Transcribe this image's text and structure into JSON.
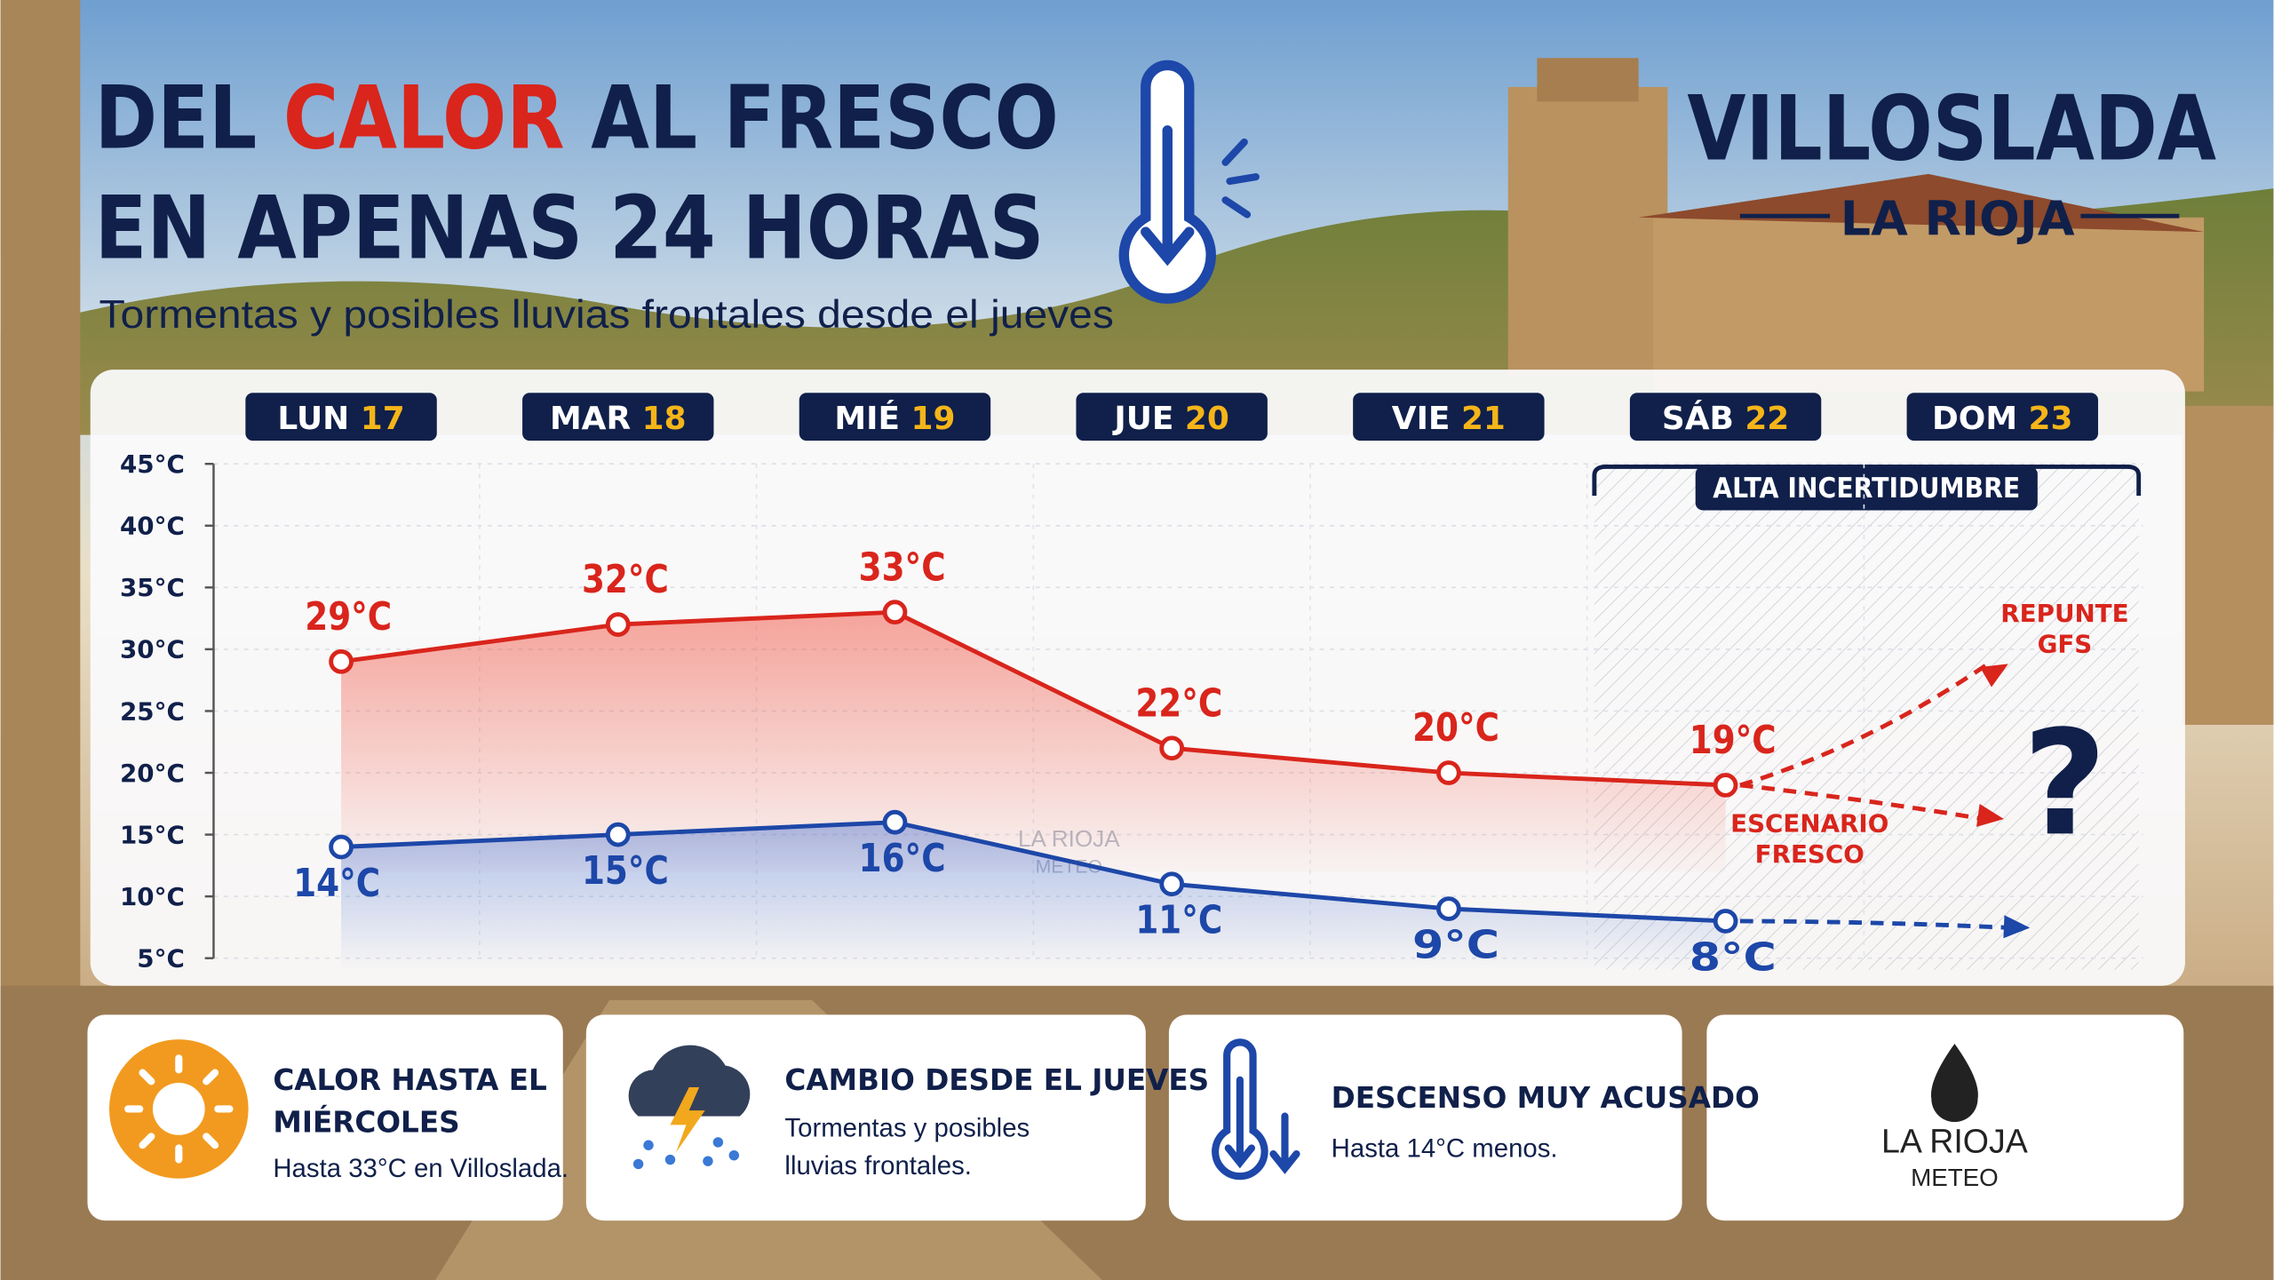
{
  "header": {
    "title_line1": [
      "DEL",
      "CALOR",
      "AL FRESCO"
    ],
    "title_line2": "EN APENAS 24 HORAS",
    "subtitle": "Tormentas y posibles lluvias frontales desde el jueves"
  },
  "location": {
    "town": "VILLOSLADA",
    "region": "LA RIOJA"
  },
  "chart_data": {
    "type": "line",
    "categories": [
      "LUN",
      "MAR",
      "MIÉ",
      "JUE",
      "VIE",
      "SÁB",
      "DOM"
    ],
    "category_dates": [
      "17",
      "18",
      "19",
      "20",
      "21",
      "22",
      "23"
    ],
    "series": [
      {
        "color": "#d9251c",
        "values": [
          29,
          32,
          33,
          22,
          20,
          19,
          null
        ],
        "value_labels": [
          "29°C",
          "32°C",
          "33°C",
          "22°C",
          "20°C",
          "19°C",
          null
        ]
      },
      {
        "color": "#1d47a8",
        "values": [
          14,
          15,
          16,
          11,
          9,
          8,
          null
        ],
        "value_labels": [
          "14°C",
          "15°C",
          "16°C",
          "11°C",
          "9°C",
          "8°C",
          null
        ]
      }
    ],
    "ylim": [
      5,
      45
    ],
    "yticks": [
      {
        "value": 5,
        "label": "5°C"
      },
      {
        "value": 10,
        "label": "10°C"
      },
      {
        "value": 15,
        "label": "15°C"
      },
      {
        "value": 20,
        "label": "20°C"
      },
      {
        "value": 25,
        "label": "25°C"
      },
      {
        "value": 30,
        "label": "30°C"
      },
      {
        "value": 35,
        "label": "35°C"
      },
      {
        "value": 40,
        "label": "40°C"
      },
      {
        "value": 45,
        "label": "45°C"
      }
    ],
    "grid": true,
    "uncertainty_label": "ALTA INCERTIDUMBRE",
    "scenario_up": [
      "REPUNTE",
      "GFS"
    ],
    "scenario_down": [
      "ESCENARIO",
      "FRESCO"
    ],
    "question": "?"
  },
  "watermark": [
    "LA RIOJA",
    "METEO"
  ],
  "cards": [
    {
      "title": [
        "CALOR HASTA EL",
        "MIÉRCOLES"
      ],
      "text": [
        "Hasta 33°C en Villoslada."
      ]
    },
    {
      "title": [
        "CAMBIO DESDE EL JUEVES"
      ],
      "text": [
        "Tormentas y posibles",
        "lluvias frontales."
      ]
    },
    {
      "title": [
        "DESCENSO MUY ACUSADO"
      ],
      "text": [
        "Hasta 14°C menos."
      ]
    }
  ],
  "logo": [
    "LA RIOJA",
    "METEO"
  ]
}
